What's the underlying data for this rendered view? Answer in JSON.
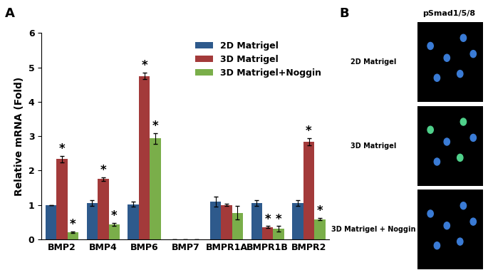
{
  "chart_data": {
    "type": "bar",
    "panel_label": "A",
    "y_label": "Relative mRNA (Fold)",
    "categories": [
      "BMP2",
      "BMP4",
      "BMP6",
      "BMP7",
      "BMPR1A",
      "BMPR1B",
      "BMPR2"
    ],
    "series": [
      {
        "name": "2D Matrigel",
        "color": "#2e5a8c",
        "values": [
          1.0,
          1.05,
          1.02,
          0,
          1.1,
          1.05,
          1.05
        ],
        "errors": [
          0.0,
          0.08,
          0.07,
          0,
          0.15,
          0.08,
          0.08
        ]
      },
      {
        "name": "3D Matrigel",
        "color": "#a33a3a",
        "values": [
          2.33,
          1.75,
          4.75,
          0,
          1.0,
          0.35,
          2.83
        ],
        "errors": [
          0.1,
          0.05,
          0.1,
          0,
          0.03,
          0.03,
          0.1
        ],
        "annotations": [
          {
            "category": "BMP2",
            "text": "*"
          },
          {
            "category": "BMP4",
            "text": "*"
          },
          {
            "category": "BMP6",
            "text": "*"
          },
          {
            "category": "BMPR1B",
            "text": "*"
          },
          {
            "category": "BMPR2",
            "text": "*"
          }
        ]
      },
      {
        "name": "3D Matrigel+Noggin",
        "color": "#7aae4a",
        "values": [
          0.2,
          0.43,
          2.93,
          0,
          0.77,
          0.3,
          0.58
        ],
        "errors": [
          0.02,
          0.05,
          0.15,
          0,
          0.2,
          0.08,
          0.03
        ],
        "annotations": [
          {
            "category": "BMP2",
            "text": "*"
          },
          {
            "category": "BMP4",
            "text": "*"
          },
          {
            "category": "BMP6",
            "text": "*"
          },
          {
            "category": "BMPR1B",
            "text": "*"
          },
          {
            "category": "BMPR2",
            "text": "*"
          }
        ]
      }
    ],
    "ylim": [
      0,
      6
    ],
    "yticks": [
      0,
      1,
      2,
      3,
      4,
      5,
      6
    ],
    "grid": false,
    "legend": "upper right"
  },
  "image_panel": {
    "panel_label": "B",
    "title": "pSmad1/5/8",
    "rows": [
      "2D Matrigel",
      "3D Matrigel",
      "3D Matrigel + Noggin"
    ]
  }
}
